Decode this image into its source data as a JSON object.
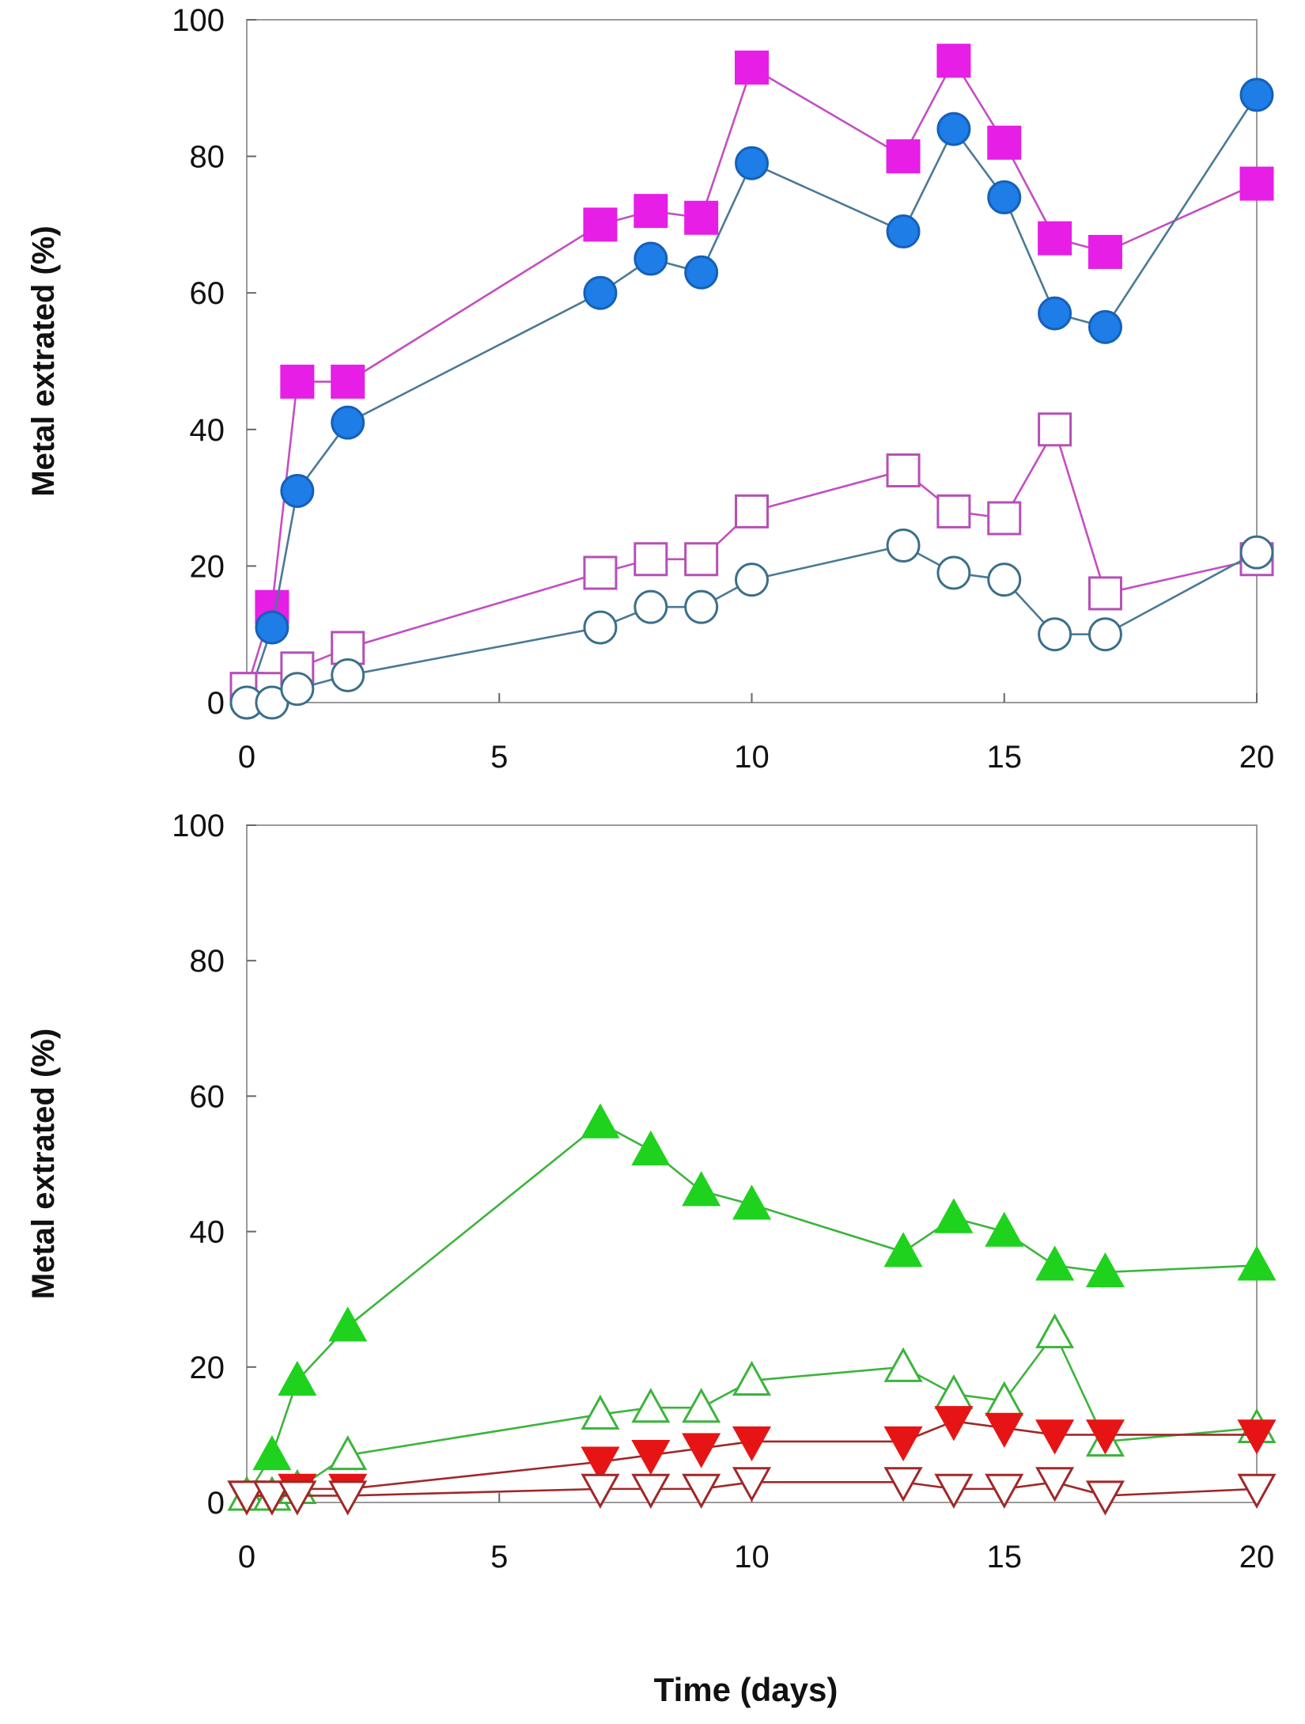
{
  "chart_data": [
    {
      "type": "line",
      "panel": "top",
      "title": "",
      "xlabel": "",
      "ylabel": "Metal extrated (%)",
      "xlim": [
        0,
        20
      ],
      "ylim": [
        0,
        100
      ],
      "xticks": [
        "0",
        "5",
        "10",
        "15",
        "20"
      ],
      "yticks": [
        "0",
        "20",
        "40",
        "60",
        "80",
        "100"
      ],
      "grid": false,
      "x": [
        0,
        0.5,
        1,
        2,
        7,
        8,
        9,
        10,
        13,
        14,
        15,
        16,
        17,
        20
      ],
      "series": [
        {
          "name": "filled square",
          "marker": "square",
          "filled": true,
          "color": "#e61ee6",
          "line_color": "#c24fc2",
          "values": [
            2,
            14,
            47,
            47,
            70,
            72,
            71,
            93,
            80,
            94,
            82,
            68,
            66,
            76
          ]
        },
        {
          "name": "filled circle",
          "marker": "circle",
          "filled": true,
          "color": "#1e7de6",
          "line_color": "#4a7a96",
          "values": [
            0,
            11,
            31,
            41,
            60,
            65,
            63,
            79,
            69,
            84,
            74,
            57,
            55,
            89
          ]
        },
        {
          "name": "open square",
          "marker": "square",
          "filled": false,
          "color": "#b64fb6",
          "line_color": "#c24fc2",
          "values": [
            2,
            2,
            5,
            8,
            19,
            21,
            21,
            28,
            34,
            28,
            27,
            40,
            16,
            21
          ]
        },
        {
          "name": "open circle",
          "marker": "circle",
          "filled": false,
          "color": "#3a6f8a",
          "line_color": "#4a7a96",
          "values": [
            0,
            0,
            2,
            4,
            11,
            14,
            14,
            18,
            23,
            19,
            18,
            10,
            10,
            22
          ]
        }
      ]
    },
    {
      "type": "line",
      "panel": "bottom",
      "title": "",
      "xlabel": "Time (days)",
      "ylabel": "Metal extrated (%)",
      "xlim": [
        0,
        20
      ],
      "ylim": [
        0,
        100
      ],
      "xticks": [
        "0",
        "5",
        "10",
        "15",
        "20"
      ],
      "yticks": [
        "0",
        "20",
        "40",
        "60",
        "80",
        "100"
      ],
      "grid": false,
      "x": [
        0,
        0.5,
        1,
        2,
        7,
        8,
        9,
        10,
        13,
        14,
        15,
        16,
        17,
        20
      ],
      "series": [
        {
          "name": "filled triangle up",
          "marker": "triangle-up",
          "filled": true,
          "color": "#1ed21e",
          "line_color": "#3cb43c",
          "values": [
            1,
            7,
            18,
            26,
            56,
            52,
            46,
            44,
            37,
            42,
            40,
            35,
            34,
            35
          ]
        },
        {
          "name": "open triangle up",
          "marker": "triangle-up",
          "filled": false,
          "color": "#3cb43c",
          "line_color": "#3cb43c",
          "values": [
            1,
            1,
            2,
            7,
            13,
            14,
            14,
            18,
            20,
            16,
            15,
            25,
            9,
            11
          ]
        },
        {
          "name": "filled triangle down",
          "marker": "triangle-down",
          "filled": true,
          "color": "#e61414",
          "line_color": "#a02828",
          "values": [
            1,
            1,
            2,
            2,
            6,
            7,
            8,
            9,
            9,
            12,
            11,
            10,
            10,
            10
          ]
        },
        {
          "name": "open triangle down",
          "marker": "triangle-down",
          "filled": false,
          "color": "#a02828",
          "line_color": "#a02828",
          "values": [
            1,
            1,
            1,
            1,
            2,
            2,
            2,
            3,
            3,
            2,
            2,
            3,
            1,
            2
          ]
        }
      ]
    }
  ]
}
